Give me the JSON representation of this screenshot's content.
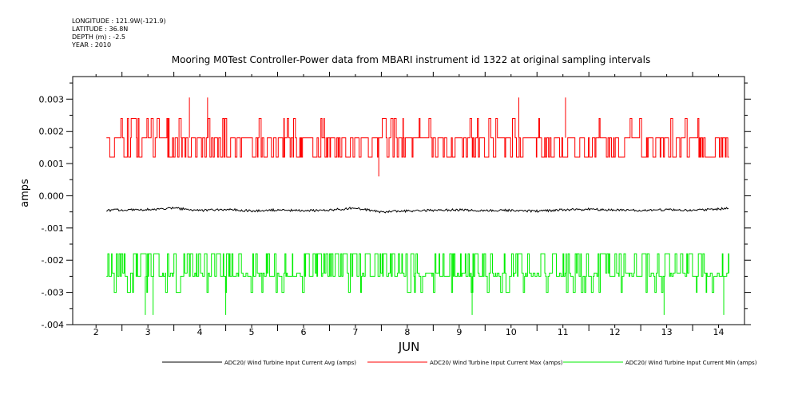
{
  "header": {
    "longitude": "LONGITUDE : 121.9W(-121.9)",
    "latitude": "LATITUDE : 36.8N",
    "depth": "DEPTH (m) : -2.5",
    "year": "YEAR : 2010"
  },
  "colors": {
    "avg": "#000000",
    "max": "#ff0000",
    "min": "#00ee00",
    "axis": "#000000"
  },
  "chart_data": {
    "type": "line",
    "title": "Mooring M0Test Controller-Power data from MBARI instrument id 1322 at original sampling intervals",
    "xlabel": "JUN",
    "ylabel": "amps",
    "x_unit": "day of June 2010",
    "xlim": [
      1.55,
      14.5
    ],
    "ylim": [
      -0.004,
      0.0037
    ],
    "x_ticks": [
      2,
      3,
      4,
      5,
      6,
      7,
      8,
      9,
      10,
      11,
      12,
      13,
      14
    ],
    "x_tick_labels": [
      "2",
      "3",
      "4",
      "5",
      "6",
      "7",
      "8",
      "9",
      "10",
      "11",
      "12",
      "13",
      "14"
    ],
    "y_ticks": [
      -0.004,
      -0.003,
      -0.002,
      -0.001,
      0.0,
      0.001,
      0.002,
      0.003
    ],
    "y_tick_labels": [
      "-.004",
      "-.003",
      "-.002",
      "-.001",
      "0.000",
      "0.001",
      "0.002",
      "0.003"
    ],
    "grid": false,
    "legend_position": "bottom",
    "series": [
      {
        "name": "ADC20/ Wind Turbine Input Current Avg (amps)",
        "color": "#000000",
        "x_range": [
          2.2,
          14.2
        ],
        "baseline": -0.00044,
        "spread": [
          -0.00058,
          -0.00032
        ],
        "x": [
          2.2,
          2.5,
          3.0,
          3.5,
          4.0,
          4.5,
          5.0,
          5.5,
          6.0,
          6.5,
          7.0,
          7.5,
          8.0,
          8.5,
          9.0,
          9.5,
          10.0,
          10.5,
          11.0,
          11.5,
          12.0,
          12.5,
          13.0,
          13.5,
          14.0,
          14.2
        ],
        "values": [
          -0.00045,
          -0.00044,
          -0.00043,
          -0.00038,
          -0.00046,
          -0.00042,
          -0.00047,
          -0.00044,
          -0.00047,
          -0.00044,
          -0.00038,
          -0.0005,
          -0.00047,
          -0.00045,
          -0.00044,
          -0.00046,
          -0.00045,
          -0.00048,
          -0.00044,
          -0.00042,
          -0.00044,
          -0.00046,
          -0.00043,
          -0.00045,
          -0.00041,
          -0.00039
        ]
      },
      {
        "name": "ADC20/ Wind Turbine Input Current Max (amps)",
        "color": "#ff0000",
        "x_range": [
          2.2,
          14.2
        ],
        "levels": [
          0.0012,
          0.0018,
          0.0024
        ],
        "baseline": 0.0018,
        "spikes": [
          {
            "x": 3.8,
            "y": 0.00305
          },
          {
            "x": 4.15,
            "y": 0.00305
          },
          {
            "x": 10.15,
            "y": 0.00305
          },
          {
            "x": 11.05,
            "y": 0.00305
          }
        ],
        "dips": [
          {
            "x": 7.45,
            "y": 0.0006
          }
        ]
      },
      {
        "name": "ADC20/ Wind Turbine Input Current Min (amps)",
        "color": "#00ee00",
        "x_range": [
          2.2,
          14.2
        ],
        "levels": [
          -0.0018,
          -0.0024,
          -0.003
        ],
        "baseline": -0.0025,
        "spikes": [
          {
            "x": 2.95,
            "y": -0.0037
          },
          {
            "x": 3.1,
            "y": -0.0037
          },
          {
            "x": 4.5,
            "y": -0.0037
          },
          {
            "x": 9.25,
            "y": -0.0037
          },
          {
            "x": 12.95,
            "y": -0.0037
          },
          {
            "x": 14.1,
            "y": -0.0037
          }
        ]
      }
    ]
  }
}
